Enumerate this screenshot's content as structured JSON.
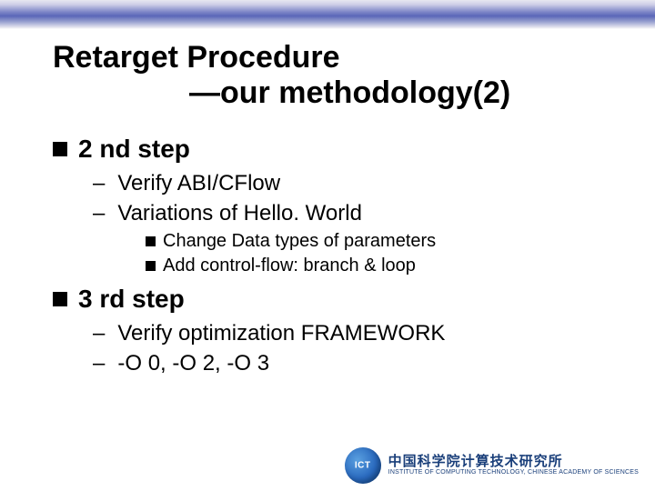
{
  "colors": {
    "background": "#ffffff",
    "text": "#000000",
    "band_gradient": [
      "#e8e8f0",
      "#d0d0e8",
      "#8088c8",
      "#5a66b8",
      "#9aa2d0",
      "#e8e8f0",
      "#ffffff"
    ],
    "footer_text_color": "#1a3f7a",
    "logo_gradient": [
      "#5aa0e0",
      "#2a6abf",
      "#114a92"
    ]
  },
  "typography": {
    "family": "Comic Sans MS",
    "title_size_pt": 34,
    "l1_size_pt": 28,
    "l2_size_pt": 24,
    "l3_size_pt": 20,
    "title_weight": "bold",
    "l1_weight": "bold"
  },
  "title": {
    "line1": "Retarget Procedure",
    "line2": "—our methodology(2)"
  },
  "bullets": [
    {
      "level": 1,
      "text": "2 nd step",
      "children": [
        {
          "level": 2,
          "text": "Verify ABI/CFlow"
        },
        {
          "level": 2,
          "text": "Variations of Hello. World",
          "children": [
            {
              "level": 3,
              "text": "Change Data types of parameters"
            },
            {
              "level": 3,
              "text": "Add control-flow: branch & loop"
            }
          ]
        }
      ]
    },
    {
      "level": 1,
      "text": "3 rd step",
      "children": [
        {
          "level": 2,
          "text": "Verify optimization FRAMEWORK"
        },
        {
          "level": 2,
          "text": "-O 0, -O 2, -O 3"
        }
      ]
    }
  ],
  "footer": {
    "logo_label": "ICT",
    "org_cn": "中国科学院计算技术研究所",
    "org_en": "INSTITUTE OF COMPUTING TECHNOLOGY, CHINESE ACADEMY OF SCIENCES"
  }
}
